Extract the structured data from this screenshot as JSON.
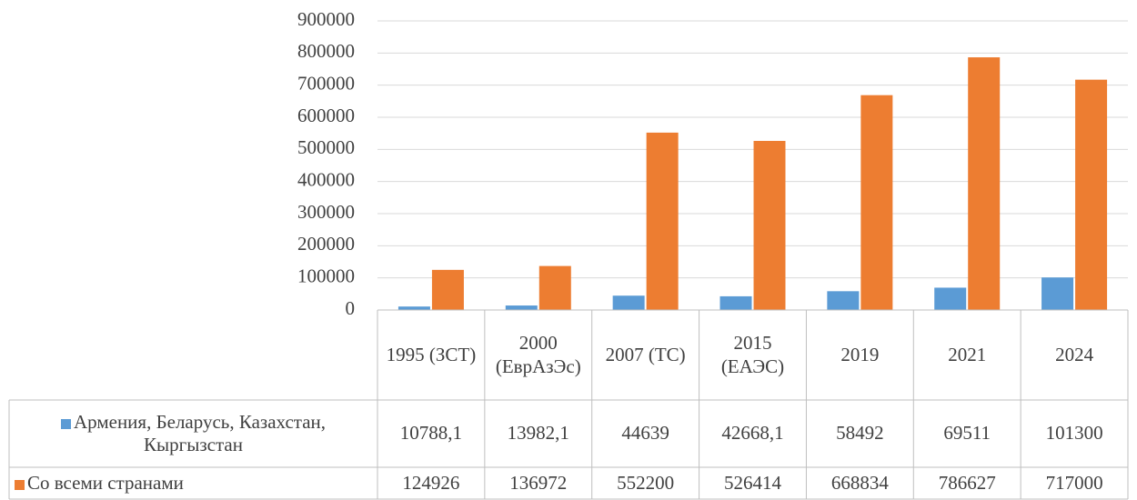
{
  "chart_data": {
    "type": "bar",
    "categories": [
      "1995 (ЗСТ)",
      "2000 (ЕврАзЭс)",
      "2007 (ТС)",
      "2015 (ЕАЭС)",
      "2019",
      "2021",
      "2024"
    ],
    "series": [
      {
        "name": "Армения, Беларусь, Казахстан, Кыргызстан",
        "color": "#5b9bd5",
        "values": [
          10788.1,
          13982.1,
          44639,
          42668.1,
          58492,
          69511,
          101300
        ],
        "value_labels": [
          "10788,1",
          "13982,1",
          "44639",
          "42668,1",
          "58492",
          "69511",
          "101300"
        ]
      },
      {
        "name": "Со всеми странами",
        "color": "#ed7d31",
        "values": [
          124926,
          136972,
          552200,
          526414,
          668834,
          786627,
          717000
        ]
      }
    ],
    "ylim": [
      0,
      900000
    ],
    "yticks": [
      0,
      100000,
      200000,
      300000,
      400000,
      500000,
      600000,
      700000,
      800000,
      900000
    ],
    "grid": true,
    "data_table": true
  }
}
